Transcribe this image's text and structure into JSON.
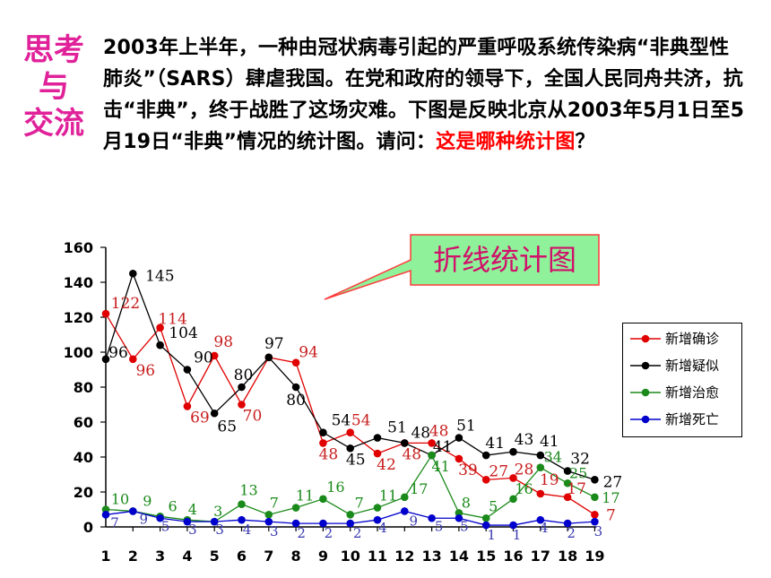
{
  "sidebar": {
    "title_lines": [
      "思考",
      "与",
      "交流"
    ]
  },
  "intro": {
    "text": "2003年上半年，一种由冠状病毒引起的严重呼吸系统传染病“非典型性肺炎”（SARS）肆虐我国。在党和政府的领导下，全国人民同舟共济，抗击“非典”，终于战胜了这场灾难。下图是反映北京从2003年5月1日至5月19日“非典”情况的统计图。请问：",
    "question": "这是哪种统计图",
    "question_mark": "？"
  },
  "callout": {
    "text": "折线统计图",
    "fill": "#8ff29a",
    "border": "#ff3b3b",
    "text_color": "#d0106a"
  },
  "chart_data": {
    "type": "line",
    "x": [
      1,
      2,
      3,
      4,
      5,
      6,
      7,
      8,
      9,
      10,
      11,
      12,
      13,
      14,
      15,
      16,
      17,
      18,
      19
    ],
    "ylim": [
      0,
      160
    ],
    "yticks": [
      0,
      20,
      40,
      60,
      80,
      100,
      120,
      140,
      160
    ],
    "grid": false,
    "legend_position": "right",
    "series": [
      {
        "name": "新增确诊",
        "color": "#e00000",
        "values": [
          122,
          96,
          114,
          69,
          98,
          70,
          97,
          94,
          48,
          54,
          42,
          48,
          48,
          39,
          27,
          28,
          19,
          17,
          7
        ]
      },
      {
        "name": "新增疑似",
        "color": "#000000",
        "values": [
          96,
          145,
          104,
          90,
          65,
          80,
          97,
          80,
          54,
          45,
          51,
          48,
          41,
          51,
          41,
          43,
          41,
          32,
          27
        ]
      },
      {
        "name": "新增治愈",
        "color": "#1a8a1a",
        "values": [
          10,
          9,
          6,
          4,
          3,
          13,
          7,
          11,
          16,
          7,
          11,
          17,
          41,
          8,
          5,
          16,
          34,
          25,
          17
        ]
      },
      {
        "name": "新增死亡",
        "color": "#0000cc",
        "values": [
          7,
          9,
          5,
          3,
          3,
          4,
          3,
          2,
          2,
          2,
          4,
          9,
          5,
          5,
          1,
          1,
          4,
          2,
          3
        ]
      }
    ]
  }
}
